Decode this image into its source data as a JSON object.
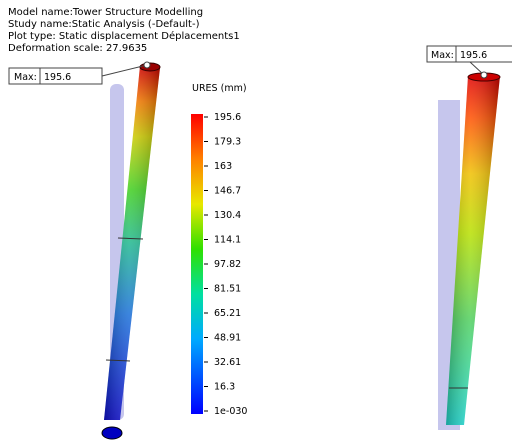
{
  "info": {
    "lines": [
      "Model name:Tower Structure Modelling",
      "Study name:Static Analysis (-Default-)",
      "Plot type: Static displacement Déplacements1",
      "Deformation scale: 27.9635"
    ]
  },
  "probes": [
    {
      "label": "Max:",
      "value": "195.6"
    },
    {
      "label": "Max:",
      "value": "195.6"
    }
  ],
  "legend": {
    "title": "URES (mm)",
    "labels": [
      "195.6",
      "179.3",
      "163",
      "146.7",
      "130.4",
      "114.1",
      "97.82",
      "81.51",
      "65.21",
      "48.91",
      "32.61",
      "16.3",
      "1e-030"
    ]
  }
}
